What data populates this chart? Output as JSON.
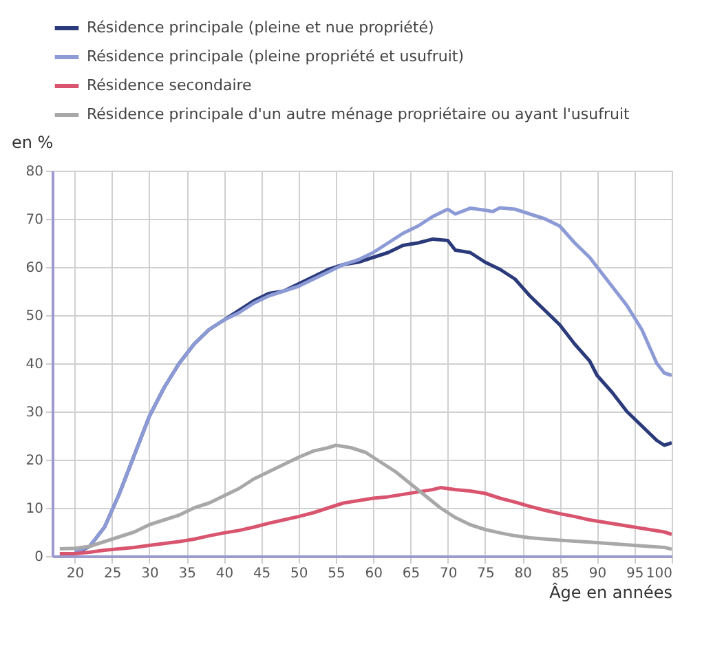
{
  "chart_data": {
    "type": "line",
    "xlabel": "Âge en années",
    "ylabel": "en %",
    "xlim": [
      17,
      100
    ],
    "xticks": [
      20,
      25,
      30,
      35,
      40,
      45,
      50,
      55,
      60,
      65,
      70,
      75,
      80,
      85,
      90,
      95,
      100
    ],
    "ylim": [
      0,
      80
    ],
    "yticks": [
      0,
      10,
      20,
      30,
      40,
      50,
      60,
      70,
      80
    ],
    "grid": true,
    "legend": "top left",
    "marker": "none",
    "line_style": "solid",
    "series": [
      {
        "name": "Résidence principale (pleine et nue propriété)",
        "color": "#2b3a7a",
        "x": [
          20,
          22,
          24,
          26,
          28,
          30,
          32,
          34,
          36,
          38,
          40,
          42,
          44,
          46,
          48,
          50,
          52,
          54,
          56,
          58,
          60,
          62,
          64,
          66,
          68,
          70,
          71,
          73,
          75,
          77,
          79,
          81,
          83,
          85,
          87,
          89,
          90,
          92,
          94,
          96,
          98,
          99,
          100
        ],
        "values": [
          0.5,
          2,
          6,
          13,
          21,
          29,
          35,
          40,
          44,
          47,
          49,
          51,
          53,
          54.5,
          55,
          56.5,
          58,
          59.5,
          60.5,
          61,
          62,
          63,
          64.5,
          65,
          65.8,
          65.5,
          63.5,
          63,
          61,
          59.5,
          57.5,
          54,
          51,
          48,
          44,
          40.5,
          37.5,
          34,
          30,
          27,
          24,
          23,
          23.5
        ]
      },
      {
        "name": "Résidence principale (pleine propriété et usufruit)",
        "color": "#8c9ad6",
        "x": [
          20,
          22,
          24,
          26,
          28,
          30,
          32,
          34,
          36,
          38,
          40,
          42,
          44,
          46,
          48,
          50,
          52,
          54,
          56,
          58,
          60,
          62,
          64,
          66,
          68,
          70,
          71,
          73,
          75,
          76,
          77,
          79,
          81,
          83,
          85,
          87,
          89,
          90,
          92,
          94,
          96,
          98,
          99,
          100
        ],
        "values": [
          0.8,
          2,
          6,
          13,
          21,
          29,
          35,
          40,
          44,
          47,
          49,
          50.5,
          52.5,
          54,
          55,
          56,
          57.5,
          59,
          60.5,
          61.5,
          63,
          65,
          67,
          68.5,
          70.5,
          72,
          71,
          72.2,
          71.8,
          71.5,
          72.3,
          72,
          71,
          70,
          68.5,
          65,
          62,
          60,
          56,
          52,
          47,
          40,
          38,
          37.5
        ]
      },
      {
        "name": "Résidence secondaire",
        "color": "#d9546e",
        "x": [
          18,
          20,
          22,
          24,
          26,
          28,
          30,
          32,
          34,
          36,
          38,
          40,
          42,
          44,
          46,
          48,
          50,
          52,
          54,
          56,
          58,
          60,
          62,
          64,
          66,
          68,
          69,
          71,
          73,
          75,
          77,
          79,
          81,
          83,
          85,
          87,
          89,
          91,
          93,
          95,
          97,
          99,
          100
        ],
        "values": [
          0.5,
          0.5,
          0.8,
          1.2,
          1.5,
          1.8,
          2.2,
          2.6,
          3,
          3.5,
          4.2,
          4.8,
          5.3,
          6,
          6.8,
          7.5,
          8.2,
          9,
          10,
          11,
          11.5,
          12,
          12.3,
          12.8,
          13.3,
          13.8,
          14.2,
          13.8,
          13.5,
          13,
          12,
          11.2,
          10.3,
          9.5,
          8.8,
          8.2,
          7.5,
          7,
          6.5,
          6,
          5.5,
          5,
          4.5
        ]
      },
      {
        "name": "Résidence principale d'un autre ménage propriétaire ou ayant l'usufruit",
        "color": "#a8a8a8",
        "x": [
          18,
          20,
          22,
          24,
          26,
          28,
          30,
          32,
          34,
          36,
          38,
          40,
          42,
          44,
          46,
          48,
          50,
          52,
          54,
          55,
          57,
          59,
          61,
          63,
          65,
          67,
          69,
          71,
          73,
          75,
          77,
          79,
          81,
          85,
          90,
          95,
          99,
          100
        ],
        "values": [
          1.5,
          1.6,
          2,
          3,
          4,
          5,
          6.5,
          7.5,
          8.5,
          10,
          11,
          12.5,
          14,
          16,
          17.5,
          19,
          20.5,
          21.8,
          22.5,
          23,
          22.5,
          21.5,
          19.5,
          17.5,
          15,
          12.5,
          10,
          8,
          6.5,
          5.5,
          4.8,
          4.2,
          3.8,
          3.3,
          2.8,
          2.2,
          1.8,
          1.4
        ]
      }
    ]
  }
}
